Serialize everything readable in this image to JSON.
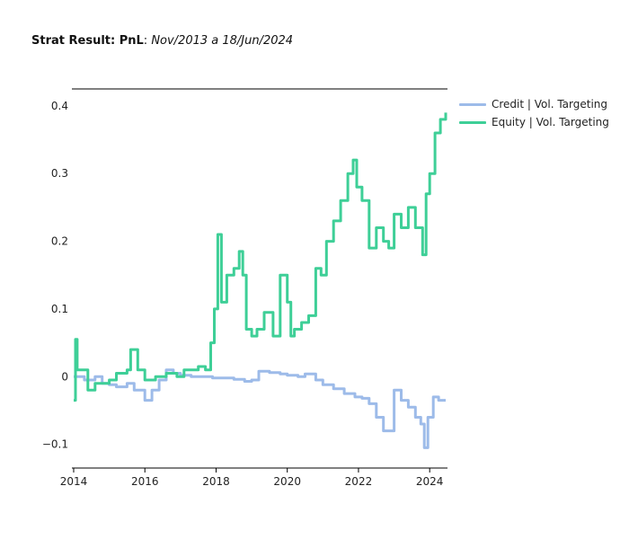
{
  "title": {
    "bold": "Strat Result: PnL",
    "sep": ": ",
    "italic": "Nov/2013 a 18/Jun/2024"
  },
  "legend": [
    {
      "label": "Credit | Vol. Targeting",
      "color": "#9dbbe9"
    },
    {
      "label": "Equity | Vol. Targeting",
      "color": "#3ecf97"
    }
  ],
  "chart_data": {
    "type": "line",
    "title": "Strat Result: PnL: Nov/2013 a 18/Jun/2024",
    "xlabel": "",
    "ylabel": "",
    "xlim": [
      2013.95,
      2024.5
    ],
    "ylim": [
      -0.135,
      0.425
    ],
    "x_ticks": [
      2014,
      2016,
      2018,
      2020,
      2022,
      2024
    ],
    "x_tick_labels": [
      "2014",
      "2016",
      "2018",
      "2020",
      "2022",
      "2024"
    ],
    "y_ticks": [
      -0.1,
      0,
      0.1,
      0.2,
      0.3,
      0.4
    ],
    "y_tick_labels": [
      "−0.1",
      "0",
      "0.1",
      "0.2",
      "0.3",
      "0.4"
    ],
    "legend_position": "top-right",
    "series": [
      {
        "name": "Credit | Vol. Targeting",
        "color": "#9dbbe9",
        "x": [
          2014.0,
          2014.3,
          2014.6,
          2014.8,
          2015.0,
          2015.2,
          2015.5,
          2015.7,
          2015.9,
          2016.0,
          2016.2,
          2016.4,
          2016.6,
          2016.8,
          2017.0,
          2017.3,
          2017.6,
          2017.9,
          2018.2,
          2018.5,
          2018.8,
          2019.0,
          2019.2,
          2019.5,
          2019.8,
          2020.0,
          2020.3,
          2020.5,
          2020.8,
          2021.0,
          2021.3,
          2021.6,
          2021.9,
          2022.1,
          2022.3,
          2022.5,
          2022.7,
          2022.85,
          2023.0,
          2023.2,
          2023.4,
          2023.6,
          2023.75,
          2023.85,
          2023.95,
          2024.1,
          2024.25,
          2024.45
        ],
        "values": [
          0.0,
          -0.005,
          0.0,
          -0.01,
          -0.012,
          -0.015,
          -0.01,
          -0.02,
          -0.02,
          -0.035,
          -0.02,
          -0.005,
          0.01,
          0.005,
          0.002,
          0.0,
          0.0,
          -0.002,
          -0.002,
          -0.004,
          -0.007,
          -0.005,
          0.008,
          0.006,
          0.004,
          0.002,
          0.0,
          0.004,
          -0.005,
          -0.012,
          -0.018,
          -0.025,
          -0.03,
          -0.032,
          -0.04,
          -0.06,
          -0.08,
          -0.08,
          -0.02,
          -0.035,
          -0.045,
          -0.06,
          -0.07,
          -0.105,
          -0.06,
          -0.03,
          -0.035,
          -0.035
        ]
      },
      {
        "name": "Equity | Vol. Targeting",
        "color": "#3ecf97",
        "x": [
          2014.0,
          2014.05,
          2014.1,
          2014.25,
          2014.4,
          2014.6,
          2014.8,
          2015.0,
          2015.2,
          2015.5,
          2015.6,
          2015.8,
          2016.0,
          2016.3,
          2016.6,
          2016.9,
          2017.1,
          2017.3,
          2017.5,
          2017.7,
          2017.85,
          2017.95,
          2018.05,
          2018.15,
          2018.3,
          2018.5,
          2018.65,
          2018.75,
          2018.85,
          2019.0,
          2019.15,
          2019.35,
          2019.6,
          2019.8,
          2020.0,
          2020.1,
          2020.2,
          2020.4,
          2020.6,
          2020.8,
          2020.95,
          2021.1,
          2021.3,
          2021.5,
          2021.7,
          2021.85,
          2021.95,
          2022.1,
          2022.3,
          2022.5,
          2022.7,
          2022.85,
          2023.0,
          2023.2,
          2023.4,
          2023.6,
          2023.8,
          2023.9,
          2024.0,
          2024.15,
          2024.3,
          2024.45
        ],
        "values": [
          -0.035,
          0.055,
          0.01,
          0.01,
          -0.02,
          -0.01,
          -0.01,
          -0.005,
          0.005,
          0.01,
          0.04,
          0.01,
          -0.005,
          0.0,
          0.005,
          0.0,
          0.01,
          0.01,
          0.015,
          0.01,
          0.05,
          0.1,
          0.21,
          0.11,
          0.15,
          0.16,
          0.185,
          0.15,
          0.07,
          0.06,
          0.07,
          0.095,
          0.06,
          0.15,
          0.11,
          0.06,
          0.07,
          0.08,
          0.09,
          0.16,
          0.15,
          0.2,
          0.23,
          0.26,
          0.3,
          0.32,
          0.28,
          0.26,
          0.19,
          0.22,
          0.2,
          0.19,
          0.24,
          0.22,
          0.25,
          0.22,
          0.18,
          0.27,
          0.3,
          0.36,
          0.38,
          0.39
        ]
      }
    ]
  }
}
